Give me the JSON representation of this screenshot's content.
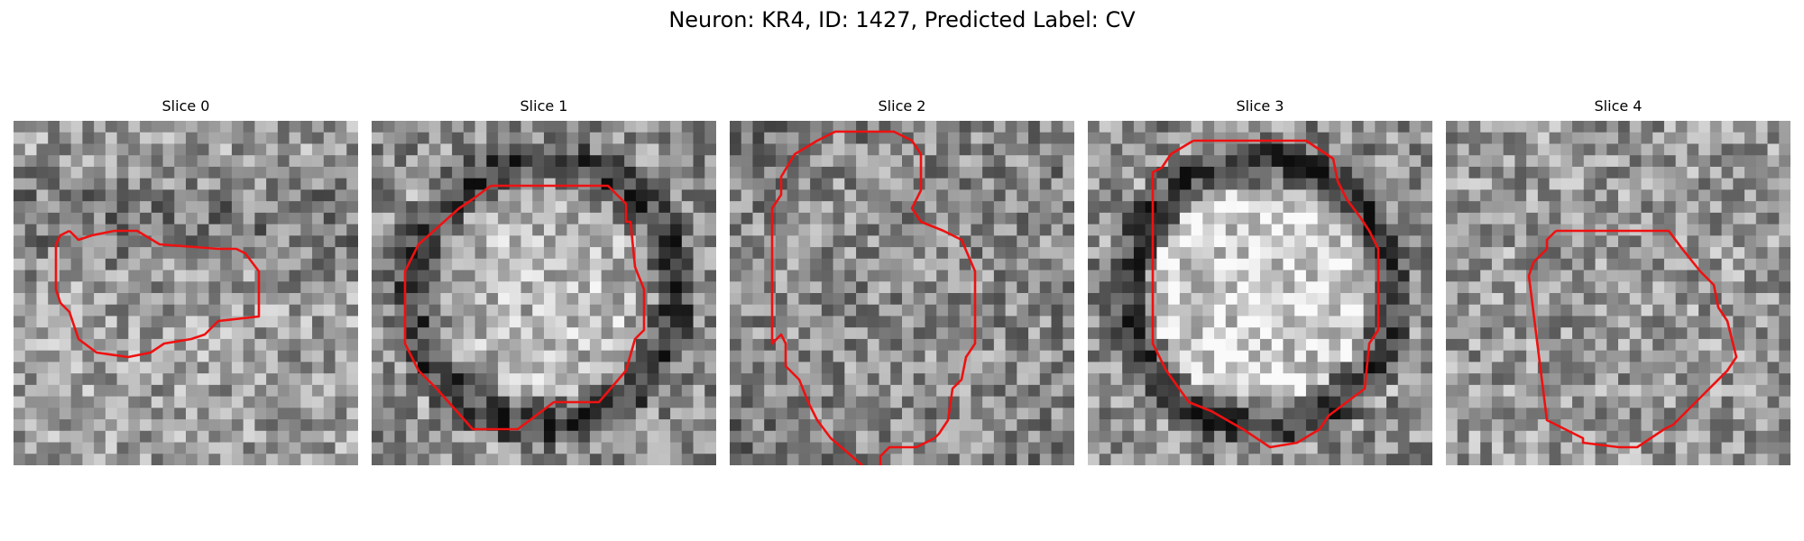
{
  "figure": {
    "title": "Neuron: KR4, ID: 1427, Predicted Label: CV",
    "contour_color": "#ee1111",
    "image_colormap": "gray"
  },
  "slices": [
    {
      "title": "Slice 0",
      "seed": 11,
      "pattern": "diffuse"
    },
    {
      "title": "Slice 1",
      "seed": 23,
      "pattern": "ring"
    },
    {
      "title": "Slice 2",
      "seed": 37,
      "pattern": "noisy"
    },
    {
      "title": "Slice 3",
      "seed": 41,
      "pattern": "ring-bright"
    },
    {
      "title": "Slice 4",
      "seed": 59,
      "pattern": "speckled"
    }
  ]
}
